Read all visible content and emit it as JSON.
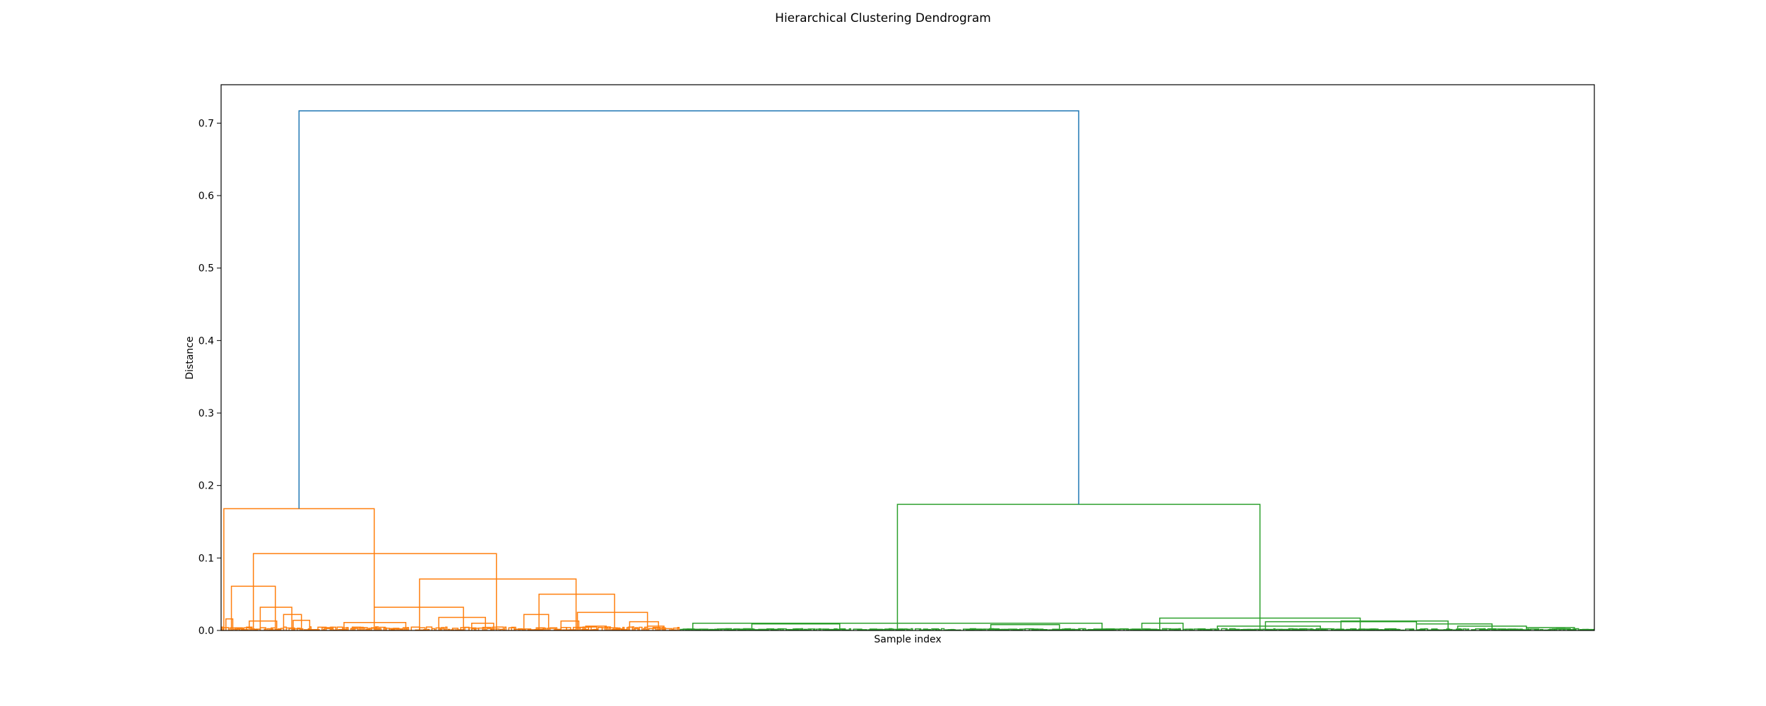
{
  "chart_data": {
    "type": "dendrogram",
    "title": "Hierarchical Clustering Dendrogram",
    "xlabel": "Sample index",
    "ylabel": "Distance",
    "ylim": [
      0,
      0.753
    ],
    "yticks": [
      0.0,
      0.1,
      0.2,
      0.3,
      0.4,
      0.5,
      0.6,
      0.7
    ],
    "ytick_labels": [
      "0.0",
      "0.1",
      "0.2",
      "0.3",
      "0.4",
      "0.5",
      "0.6",
      "0.7"
    ],
    "grid": false,
    "colors": {
      "root": "#1f77b4",
      "cluster_1": "#ff7f0e",
      "cluster_2": "#2ca02c",
      "axes": "#000000"
    },
    "leaf_count": 1000,
    "clusters": [
      {
        "name": "cluster_1",
        "color_key": "cluster_1",
        "leaf_start": 0,
        "leaf_end": 333,
        "root_height": 0.168,
        "splits": [
          {
            "x1": 1.5,
            "x2": 111,
            "h": 0.168
          },
          {
            "x1": 23,
            "x2": 200,
            "h": 0.106
          },
          {
            "x1": 7,
            "x2": 39,
            "h": 0.061
          },
          {
            "x1": 144,
            "x2": 258,
            "h": 0.071
          },
          {
            "x1": 111,
            "x2": 176,
            "h": 0.032
          },
          {
            "x1": 231,
            "x2": 286,
            "h": 0.05
          },
          {
            "x1": 28,
            "x2": 51,
            "h": 0.032
          },
          {
            "x1": 20,
            "x2": 40,
            "h": 0.013
          },
          {
            "x1": 45,
            "x2": 58,
            "h": 0.022
          },
          {
            "x1": 52,
            "x2": 64,
            "h": 0.014
          },
          {
            "x1": 3,
            "x2": 8,
            "h": 0.016
          },
          {
            "x1": 89,
            "x2": 134,
            "h": 0.011
          },
          {
            "x1": 158,
            "x2": 192,
            "h": 0.018
          },
          {
            "x1": 182,
            "x2": 198,
            "h": 0.01
          },
          {
            "x1": 220,
            "x2": 238,
            "h": 0.022
          },
          {
            "x1": 259,
            "x2": 310,
            "h": 0.025
          },
          {
            "x1": 247,
            "x2": 260,
            "h": 0.013
          },
          {
            "x1": 297,
            "x2": 318,
            "h": 0.012
          },
          {
            "x1": 310,
            "x2": 322,
            "h": 0.006
          },
          {
            "x1": 265,
            "x2": 280,
            "h": 0.006
          }
        ]
      },
      {
        "name": "cluster_2",
        "color_key": "cluster_2",
        "leaf_start": 334,
        "leaf_end": 999,
        "root_height": 0.174,
        "splits": [
          {
            "x1": 492,
            "x2": 756,
            "h": 0.174
          },
          {
            "x1": 343,
            "x2": 641,
            "h": 0.01
          },
          {
            "x1": 386,
            "x2": 450,
            "h": 0.009
          },
          {
            "x1": 560,
            "x2": 610,
            "h": 0.008
          },
          {
            "x1": 683,
            "x2": 829,
            "h": 0.017
          },
          {
            "x1": 815,
            "x2": 893,
            "h": 0.013
          },
          {
            "x1": 760,
            "x2": 870,
            "h": 0.012
          },
          {
            "x1": 870,
            "x2": 925,
            "h": 0.009
          },
          {
            "x1": 670,
            "x2": 700,
            "h": 0.01
          },
          {
            "x1": 725,
            "x2": 800,
            "h": 0.006
          },
          {
            "x1": 900,
            "x2": 950,
            "h": 0.006
          },
          {
            "x1": 950,
            "x2": 985,
            "h": 0.004
          }
        ]
      }
    ],
    "top_link": {
      "color_key": "root",
      "h": 0.717
    }
  }
}
